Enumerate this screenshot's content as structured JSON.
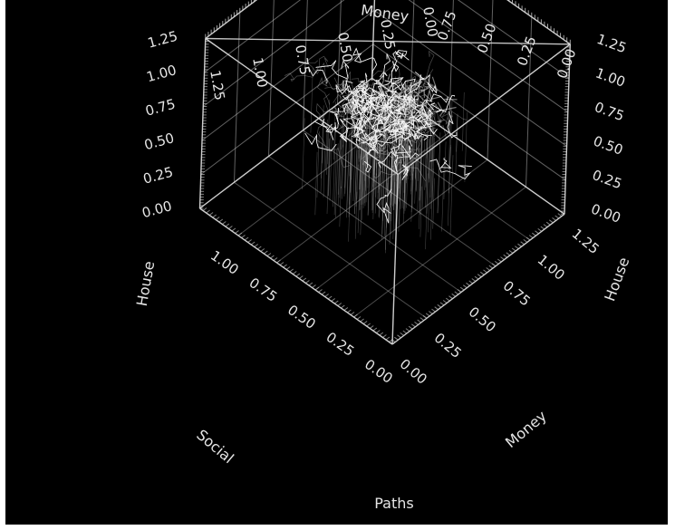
{
  "chart_data": {
    "type": "scatter",
    "render": "3d-path-cloud",
    "axes": {
      "x": {
        "label": "Money",
        "ticks": [
          "0.00",
          "0.25",
          "0.50",
          "0.75",
          "1.00",
          "1.25"
        ],
        "range": [
          0,
          1.25
        ]
      },
      "y": {
        "label": "Social",
        "ticks": [
          "0.00",
          "0.25",
          "0.50",
          "0.75",
          "1.00"
        ],
        "range": [
          0,
          1.25
        ]
      },
      "z": {
        "label": "House",
        "ticks": [
          "0.00",
          "0.25",
          "0.50",
          "0.75",
          "1.00",
          "1.25"
        ],
        "range": [
          0,
          1.25
        ]
      }
    },
    "extra_labels": {
      "paths": "Paths",
      "top_label": "Money"
    },
    "top_ticks_left": [
      "1.25",
      "1.00",
      "0.75",
      "0.50",
      "0.25",
      "0.00"
    ],
    "top_ticks_right": [
      "0.75",
      "0.50",
      "0.25",
      "0.00"
    ],
    "cloud": {
      "center": {
        "money": 0.55,
        "social": 0.55,
        "house": 0.85
      },
      "spread": {
        "money": 0.28,
        "social": 0.3,
        "house": 0.22
      },
      "density": "very high (thousands of overlapping paths)"
    },
    "colors": {
      "background": "#000000",
      "axes": "#d8d8d8",
      "cloud": "#f2f2f2"
    },
    "grid": true
  }
}
